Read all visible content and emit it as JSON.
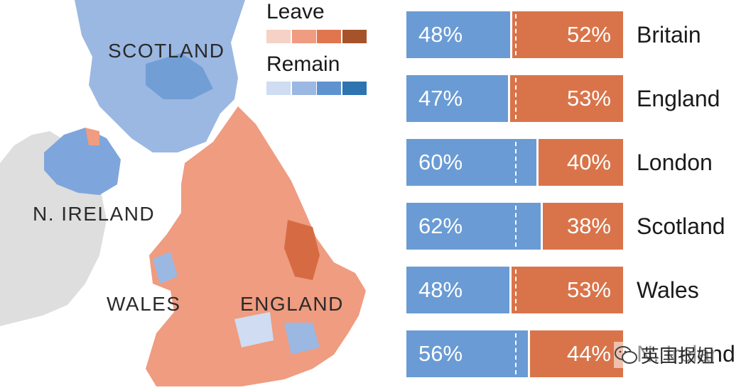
{
  "legend": {
    "leave_label": "Leave",
    "remain_label": "Remain",
    "leave_colors": [
      "#f6d2c6",
      "#ef9c80",
      "#e0764e",
      "#a7532a"
    ],
    "remain_colors": [
      "#cfdcf2",
      "#9bb8e2",
      "#5f93d0",
      "#2d74b0"
    ]
  },
  "map": {
    "labels": {
      "scotland": "SCOTLAND",
      "n_ireland": "N. IRELAND",
      "wales": "WALES",
      "england": "ENGLAND"
    },
    "colors": {
      "land": "#dedede",
      "scotland": "#9bb8e2",
      "n_ireland": "#7ea6dc",
      "england_wales": "#ef9c80"
    }
  },
  "chart_data": {
    "type": "bar",
    "orientation": "horizontal",
    "stacked": true,
    "categories": [
      "Britain",
      "England",
      "London",
      "Scotland",
      "Wales",
      "N. Ireland"
    ],
    "series": [
      {
        "name": "Remain",
        "values": [
          48,
          47,
          60,
          62,
          48,
          56
        ],
        "labels": [
          "48%",
          "47%",
          "60%",
          "62%",
          "48%",
          "56%"
        ],
        "color": "#6a9bd4"
      },
      {
        "name": "Leave",
        "values": [
          52,
          53,
          40,
          38,
          53,
          44
        ],
        "labels": [
          "52%",
          "53%",
          "40%",
          "38%",
          "53%",
          "44%"
        ],
        "color": "#d9744a"
      }
    ],
    "reference_line": 50
  },
  "watermark": {
    "text": "英国报姐",
    "icon": "wechat-icon"
  }
}
